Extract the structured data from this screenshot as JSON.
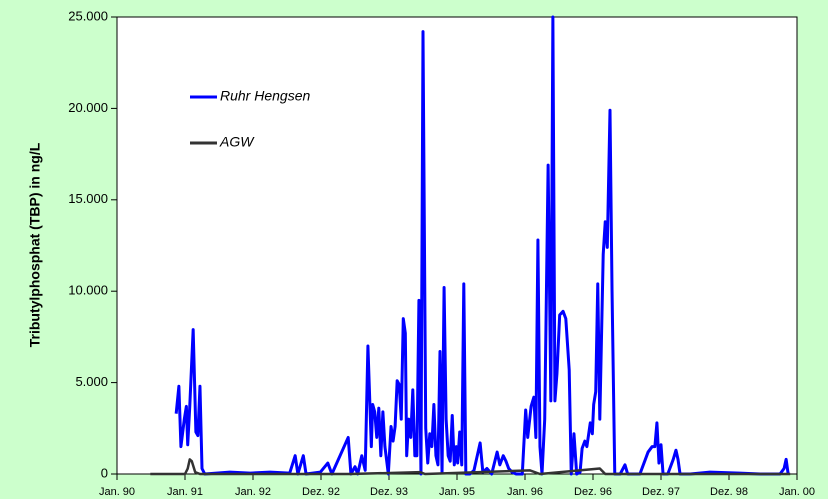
{
  "chart_data": {
    "type": "line",
    "ylabel": "Tributylphosphat (TBP) in ng/L",
    "xlim": [
      1990,
      2000
    ],
    "ylim": [
      0,
      25000
    ],
    "xticks": [
      {
        "value": 1990,
        "label": "Jan. 90"
      },
      {
        "value": 1991,
        "label": "Jan. 91"
      },
      {
        "value": 1992,
        "label": "Jan. 92"
      },
      {
        "value": 1993,
        "label": "Dez. 92"
      },
      {
        "value": 1994,
        "label": "Dez. 93"
      },
      {
        "value": 1995,
        "label": "Jan. 95"
      },
      {
        "value": 1996,
        "label": "Jan. 96"
      },
      {
        "value": 1997,
        "label": "Dez. 96"
      },
      {
        "value": 1998,
        "label": "Dez. 97"
      },
      {
        "value": 1999,
        "label": "Dez. 98"
      },
      {
        "value": 2000,
        "label": "Jan. 00"
      }
    ],
    "yticks": [
      0,
      {
        "value": 5000,
        "label": "5.000"
      },
      {
        "value": 10000,
        "label": "10.000"
      },
      {
        "value": 15000,
        "label": "15.000"
      },
      {
        "value": 20000,
        "label": "20.000"
      },
      {
        "value": 25000,
        "label": "25.000"
      }
    ],
    "legend": "upper left",
    "series": [
      {
        "name": "Ruhr Hengsen",
        "color": "#0000ff",
        "x": [
          1990.87,
          1990.91,
          1990.94,
          1990.99,
          1991.02,
          1991.04,
          1991.07,
          1991.12,
          1991.16,
          1991.19,
          1991.22,
          1991.25,
          1991.29,
          1991.66,
          1991.96,
          1992.25,
          1992.54,
          1992.62,
          1992.66,
          1992.74,
          1992.78,
          1992.99,
          1993.1,
          1993.16,
          1993.4,
          1993.44,
          1993.5,
          1993.54,
          1993.6,
          1993.65,
          1993.69,
          1993.74,
          1993.76,
          1993.79,
          1993.82,
          1993.85,
          1993.88,
          1993.91,
          1993.94,
          1993.99,
          1994.03,
          1994.06,
          1994.09,
          1994.12,
          1994.15,
          1994.18,
          1994.21,
          1994.24,
          1994.26,
          1994.29,
          1994.32,
          1994.35,
          1994.38,
          1994.41,
          1994.44,
          1994.47,
          1994.5,
          1994.54,
          1994.57,
          1994.6,
          1994.63,
          1994.66,
          1994.69,
          1994.72,
          1994.75,
          1994.78,
          1994.81,
          1994.84,
          1994.87,
          1994.9,
          1994.93,
          1994.96,
          1994.99,
          1995.01,
          1995.04,
          1995.07,
          1995.1,
          1995.13,
          1995.19,
          1995.25,
          1995.34,
          1995.38,
          1995.44,
          1995.51,
          1995.59,
          1995.63,
          1995.68,
          1995.72,
          1995.76,
          1995.81,
          1995.87,
          1995.96,
          1996.01,
          1996.04,
          1996.09,
          1996.13,
          1996.16,
          1996.19,
          1996.22,
          1996.25,
          1996.29,
          1996.34,
          1996.38,
          1996.41,
          1996.44,
          1996.47,
          1996.51,
          1996.56,
          1996.6,
          1996.65,
          1996.68,
          1996.72,
          1996.76,
          1996.81,
          1996.84,
          1996.88,
          1996.91,
          1996.96,
          1996.99,
          1997.01,
          1997.04,
          1997.07,
          1997.1,
          1997.15,
          1997.18,
          1997.21,
          1997.25,
          1997.28,
          1997.32,
          1997.4,
          1997.47,
          1997.51,
          1997.69,
          1997.81,
          1997.87,
          1997.91,
          1997.94,
          1997.97,
          1998.0,
          1998.03,
          1998.1,
          1998.18,
          1998.22,
          1998.25,
          1998.28,
          1998.43,
          1998.72,
          1999.16,
          1999.46,
          1999.75,
          1999.81,
          1999.84,
          1999.87
        ],
        "values": [
          3300,
          4800,
          1500,
          3000,
          3700,
          1600,
          3700,
          7900,
          2300,
          2100,
          4800,
          300,
          0,
          100,
          50,
          100,
          50,
          1000,
          0,
          1000,
          0,
          100,
          600,
          0,
          2000,
          0,
          400,
          0,
          1000,
          200,
          7000,
          1500,
          3800,
          3400,
          2000,
          3600,
          1000,
          3400,
          1500,
          0,
          2600,
          1800,
          2600,
          5100,
          4900,
          3000,
          8500,
          7700,
          1000,
          3000,
          2000,
          4600,
          1000,
          1000,
          9500,
          0,
          24200,
          2500,
          600,
          2200,
          1500,
          3800,
          1000,
          500,
          6700,
          100,
          10200,
          3000,
          1000,
          700,
          3200,
          500,
          1500,
          600,
          2300,
          500,
          10400,
          0,
          0,
          200,
          1700,
          100,
          300,
          0,
          1200,
          500,
          1000,
          700,
          300,
          100,
          0,
          0,
          3500,
          2000,
          3700,
          4200,
          2000,
          12800,
          1500,
          0,
          3000,
          16900,
          4000,
          25000,
          4000,
          5500,
          8700,
          8900,
          8500,
          5700,
          0,
          2200,
          0,
          100,
          1400,
          1800,
          1500,
          2800,
          2200,
          3800,
          4500,
          10400,
          3000,
          12000,
          13800,
          12400,
          19900,
          10000,
          0,
          0,
          500,
          0,
          0,
          1200,
          1500,
          1500,
          2800,
          600,
          1600,
          0,
          0,
          800,
          1300,
          800,
          0,
          0,
          100,
          50,
          0,
          0,
          300,
          800,
          0
        ]
      },
      {
        "name": "AGW",
        "color": "#333333",
        "x": [
          1990.49,
          1991.0,
          1991.04,
          1991.07,
          1991.1,
          1991.15,
          1991.22,
          1993.43,
          1994.46,
          1994.53,
          1996.07,
          1996.22,
          1997.1,
          1997.18,
          1999.9
        ],
        "values": [
          0,
          0,
          300,
          800,
          700,
          100,
          0,
          0,
          100,
          0,
          200,
          0,
          300,
          0,
          0
        ]
      }
    ]
  }
}
